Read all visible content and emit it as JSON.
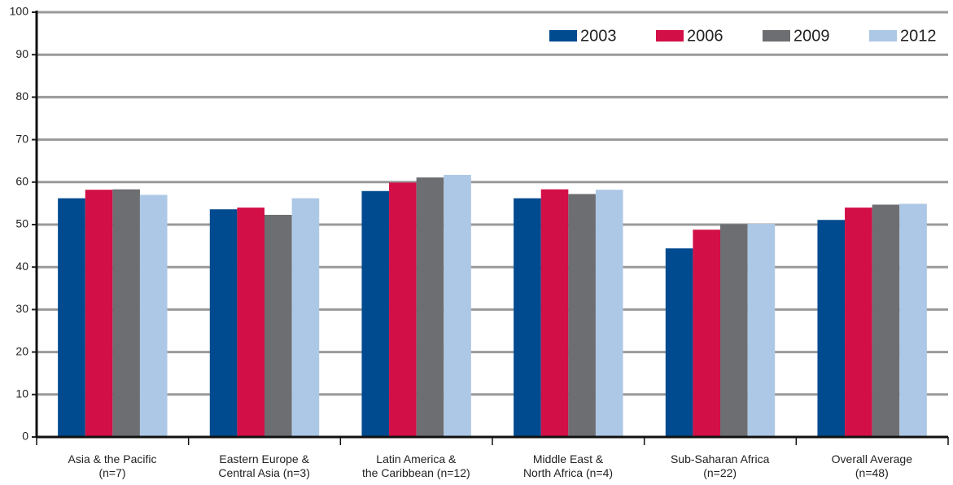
{
  "chart_data": {
    "type": "bar",
    "categories": [
      "Asia & the Pacific\n(n=7)",
      "Eastern Europe &\nCentral Asia (n=3)",
      "Latin America &\nthe Caribbean (n=12)",
      "Middle East &\nNorth Africa (n=4)",
      "Sub-Saharan Africa\n(n=22)",
      "Overall Average\n(n=48)"
    ],
    "series": [
      {
        "name": "2003",
        "color": "#004a8f",
        "values": [
          56.2,
          53.6,
          57.9,
          56.2,
          44.4,
          51.1
        ]
      },
      {
        "name": "2006",
        "color": "#d20f46",
        "values": [
          58.2,
          54.0,
          59.9,
          58.3,
          48.8,
          54.0
        ]
      },
      {
        "name": "2009",
        "color": "#6d6e71",
        "values": [
          58.3,
          52.3,
          61.1,
          57.2,
          50.1,
          54.7
        ]
      },
      {
        "name": "2012",
        "color": "#adc8e6",
        "values": [
          57.0,
          56.2,
          61.7,
          58.2,
          50.2,
          54.9
        ]
      }
    ],
    "ylim": [
      0,
      100
    ],
    "yticks": [
      0,
      10,
      20,
      30,
      40,
      50,
      60,
      70,
      80,
      90,
      100
    ],
    "grid": true,
    "legend": "top-right"
  }
}
